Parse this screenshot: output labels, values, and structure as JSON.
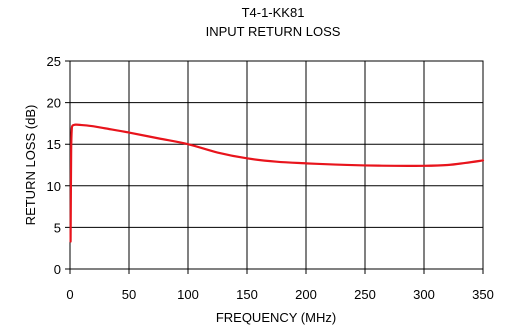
{
  "chart_data": {
    "type": "line",
    "title": "T4-1-KK81",
    "subtitle": "INPUT RETURN LOSS",
    "xlabel": "FREQUENCY (MHz)",
    "ylabel": "RETURN LOSS (dB)",
    "xlim": [
      0,
      350
    ],
    "ylim": [
      0,
      25
    ],
    "xticks": [
      "0",
      "50",
      "100",
      "150",
      "200",
      "250",
      "300",
      "350"
    ],
    "yticks": [
      "0",
      "5",
      "10",
      "15",
      "20",
      "25"
    ],
    "grid": true,
    "colors": {
      "line": "#e8141c",
      "grid": "#000000"
    },
    "series": [
      {
        "x": [
          0.5,
          0.8,
          1,
          1.5,
          2,
          3,
          5,
          10,
          20,
          30,
          50,
          75,
          100,
          125,
          150,
          175,
          200,
          225,
          250,
          275,
          300,
          320,
          335,
          350
        ],
        "values": [
          3.3,
          10.5,
          14.5,
          16.8,
          17.2,
          17.3,
          17.35,
          17.3,
          17.15,
          16.9,
          16.4,
          15.7,
          15.0,
          14.0,
          13.3,
          12.9,
          12.7,
          12.55,
          12.45,
          12.4,
          12.4,
          12.5,
          12.75,
          13.05
        ]
      }
    ]
  }
}
